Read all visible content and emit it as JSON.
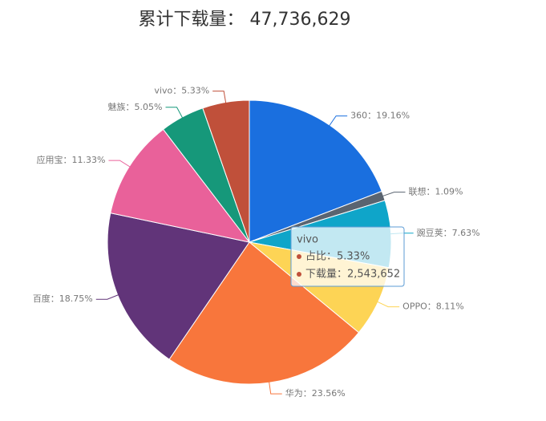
{
  "chart_data": {
    "type": "pie",
    "title": "累计下载量： 47,736,629",
    "categories": [
      "360",
      "联想",
      "豌豆荚",
      "OPPO",
      "华为",
      "百度",
      "应用宝",
      "魅族",
      "vivo"
    ],
    "values": [
      19.16,
      1.09,
      7.63,
      8.11,
      23.56,
      18.75,
      11.33,
      5.05,
      5.33
    ],
    "value_labels": [
      "360：19.16%",
      "联想：1.09%",
      "豌豆荚：7.63%",
      "OPPO：8.11%",
      "华为：23.56%",
      "百度：18.75%",
      "应用宝：11.33%",
      "魅族：5.05%",
      "vivo：5.33%"
    ],
    "colors": [
      "#1a6fdf",
      "#5a6470",
      "#0fa5c9",
      "#fdd455",
      "#f8763c",
      "#613479",
      "#e9619a",
      "#16987a",
      "#c0503a"
    ],
    "tooltip": {
      "title": "vivo",
      "rows": [
        "占比：5.33%",
        "下载量：2,543,652"
      ]
    }
  }
}
